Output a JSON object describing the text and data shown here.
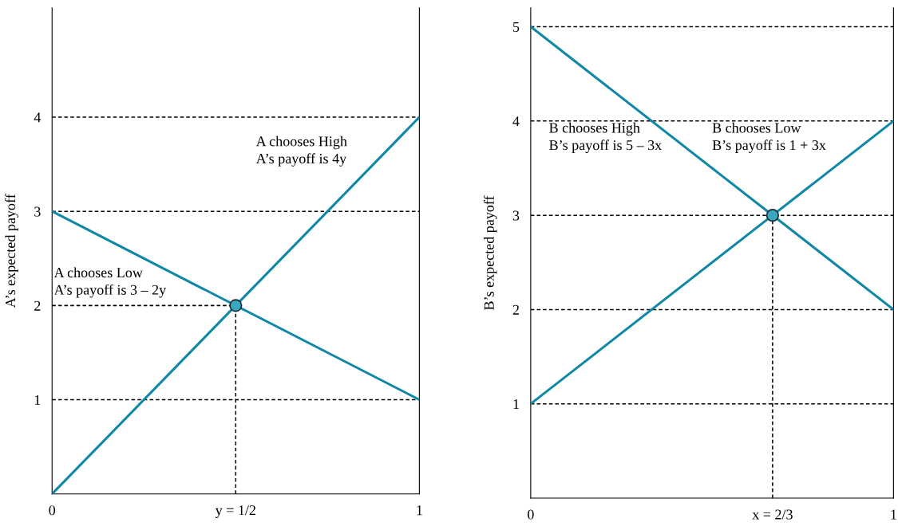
{
  "chart_data": [
    {
      "type": "line",
      "ylabel": "A’s expected payoff",
      "xlim": [
        0,
        1
      ],
      "ylim": [
        0,
        5.16
      ],
      "xticks": [
        0,
        {
          "value": 0.5,
          "label": "y = 1/2"
        },
        1
      ],
      "yticks": [
        1,
        2,
        3,
        4
      ],
      "grid": false,
      "legend": false,
      "series": [
        {
          "color": "#0f87a6",
          "x": [
            0,
            1
          ],
          "values": [
            0,
            4
          ]
        },
        {
          "color": "#0f87a6",
          "x": [
            0,
            1
          ],
          "values": [
            3,
            1
          ]
        },
        {
          "color": "#000000",
          "line_style": "dashed",
          "x": [
            0,
            0.5
          ],
          "values": [
            2,
            2
          ]
        },
        {
          "color": "#000000",
          "line_style": "dashed",
          "x": [
            0.5,
            0.5
          ],
          "values": [
            0,
            2
          ]
        },
        {
          "type": "scatter",
          "marker": "circle",
          "color": "#3aa7c0",
          "x": [
            0.5
          ],
          "values": [
            2
          ]
        }
      ],
      "ref_lines": [
        {
          "axis": "y",
          "value": 1
        },
        {
          "axis": "y",
          "value": 3
        },
        {
          "axis": "y",
          "value": 4
        }
      ],
      "annotations": [
        "A chooses High\nA’s payoff is 4y",
        "A chooses Low\nA’s payoff is 3 – 2y"
      ]
    },
    {
      "type": "line",
      "ylabel": "B’s expected payoff",
      "xlim": [
        0,
        1
      ],
      "ylim": [
        0,
        5.2
      ],
      "xticks": [
        0,
        {
          "value": 0.6667,
          "label": "x = 2/3"
        },
        1
      ],
      "yticks": [
        1,
        2,
        3,
        4,
        5
      ],
      "grid": false,
      "legend": false,
      "series": [
        {
          "color": "#0f87a6",
          "x": [
            0,
            1
          ],
          "values": [
            5,
            2
          ]
        },
        {
          "color": "#0f87a6",
          "x": [
            0,
            1
          ],
          "values": [
            1,
            4
          ]
        },
        {
          "color": "#000000",
          "line_style": "dashed",
          "x": [
            0.6667,
            0.6667
          ],
          "values": [
            0,
            3
          ]
        },
        {
          "type": "scatter",
          "marker": "circle",
          "color": "#3aa7c0",
          "x": [
            0.6667
          ],
          "values": [
            3
          ]
        }
      ],
      "ref_lines": [
        {
          "axis": "y",
          "value": 1
        },
        {
          "axis": "y",
          "value": 2
        },
        {
          "axis": "y",
          "value": 3
        },
        {
          "axis": "y",
          "value": 4
        },
        {
          "axis": "y",
          "value": 5
        }
      ],
      "annotations": [
        "B chooses High\nB’s payoff is 5 – 3x",
        "B chooses Low\nB’s payoff is 1 + 3x"
      ]
    }
  ]
}
